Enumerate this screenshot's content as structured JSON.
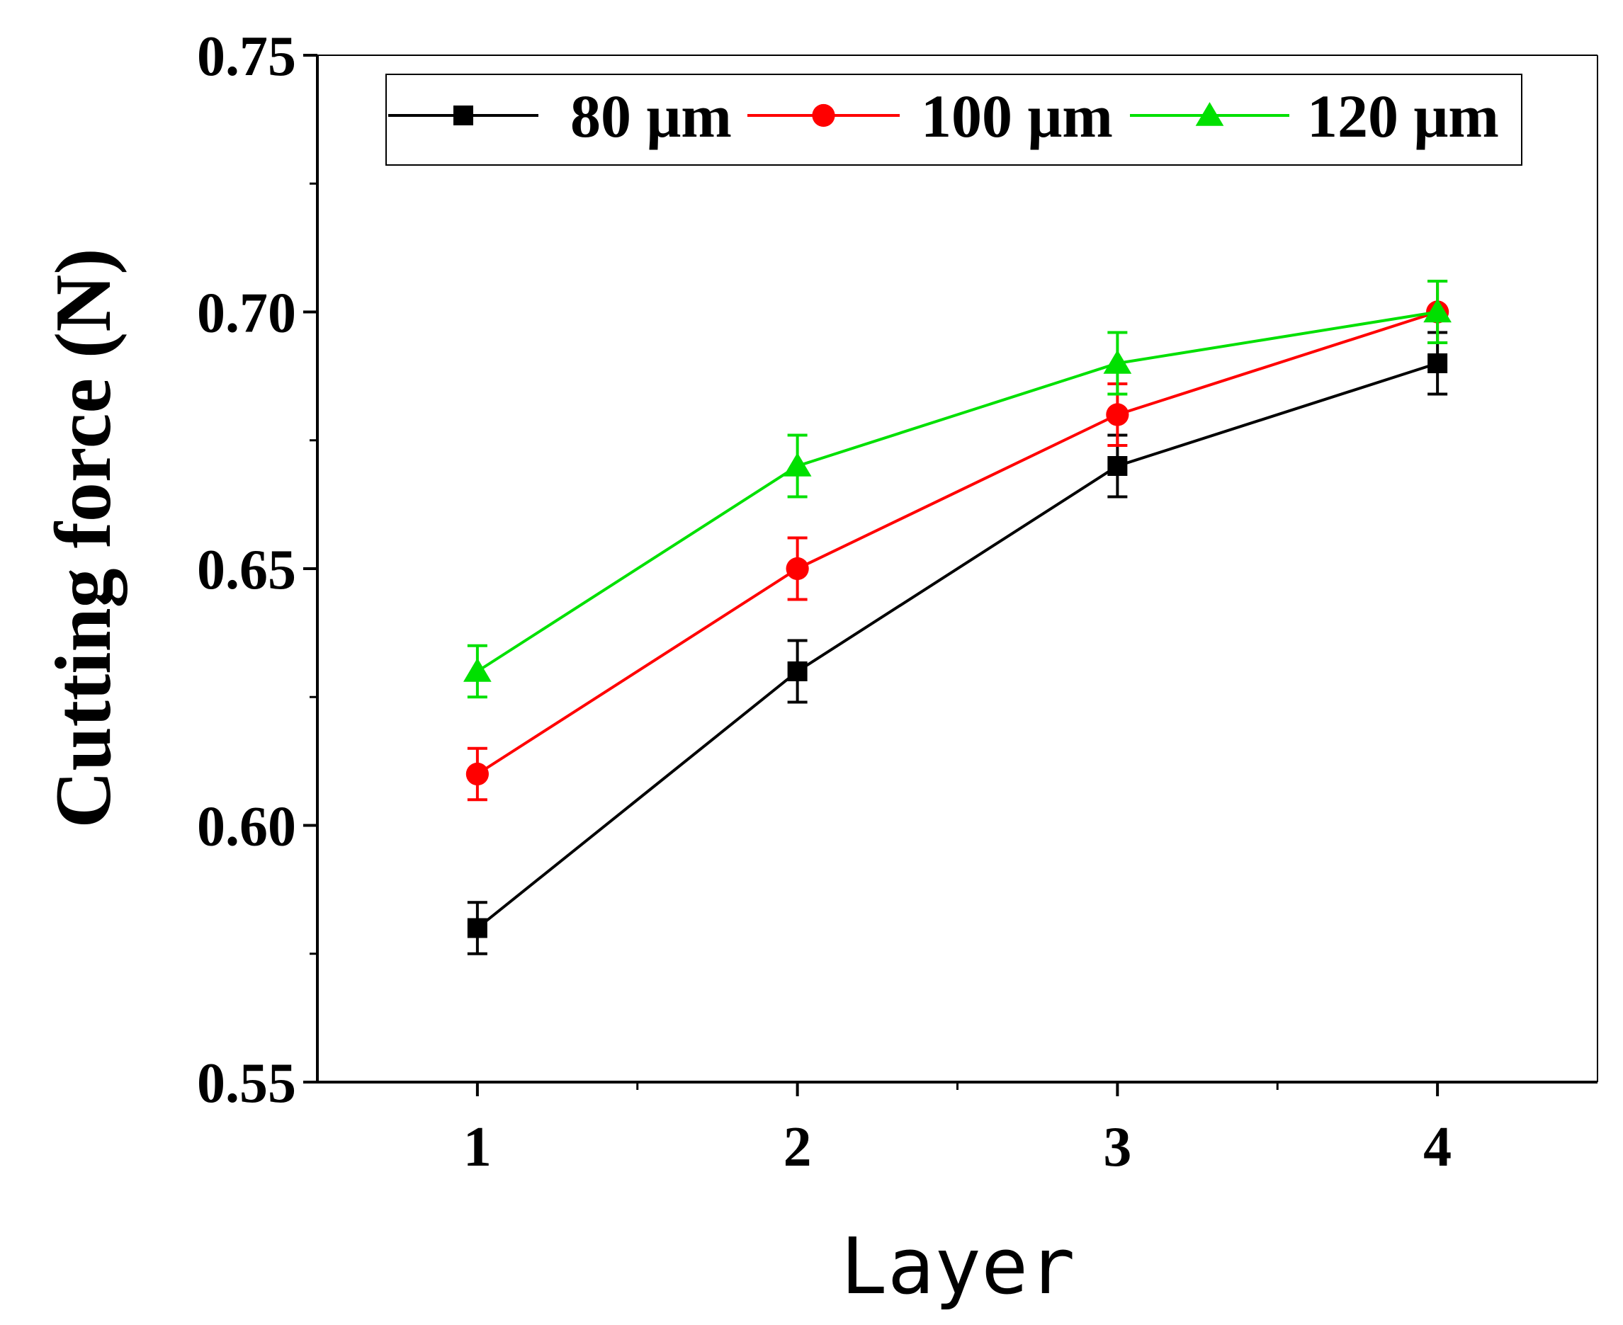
{
  "chart_data": {
    "type": "line",
    "title": "",
    "xlabel": "Layer",
    "ylabel": "Cutting force (N)",
    "x": [
      1,
      2,
      3,
      4
    ],
    "xlim": [
      0.5,
      4.5
    ],
    "ylim": [
      0.55,
      0.75
    ],
    "x_ticks": [
      "1",
      "2",
      "3",
      "4"
    ],
    "y_ticks": [
      "0.55",
      "0.60",
      "0.65",
      "0.70",
      "0.75"
    ],
    "grid": false,
    "legend_position": "top",
    "series": [
      {
        "name": "80 μm",
        "color": "#000000",
        "marker": "square",
        "values": [
          0.58,
          0.63,
          0.67,
          0.69
        ],
        "errors": [
          0.005,
          0.006,
          0.006,
          0.006
        ]
      },
      {
        "name": "100 μm",
        "color": "#ff0000",
        "marker": "circle",
        "values": [
          0.61,
          0.65,
          0.68,
          0.7
        ],
        "errors": [
          0.005,
          0.006,
          0.006,
          0.006
        ]
      },
      {
        "name": "120 μm",
        "color": "#00e000",
        "marker": "triangle",
        "values": [
          0.63,
          0.67,
          0.69,
          0.7
        ],
        "errors": [
          0.005,
          0.006,
          0.006,
          0.006
        ]
      }
    ]
  }
}
